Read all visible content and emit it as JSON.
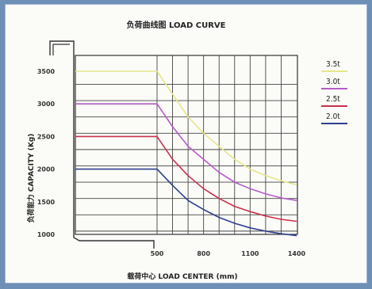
{
  "chart_data": {
    "type": "line",
    "title": "负荷曲线图 LOAD CURVE",
    "xlabel": "载荷中心 LOAD CENTER (mm)",
    "ylabel": "负荷能力 CAPACITY (Kg)",
    "x_ticks": [
      "500",
      "800",
      "1100",
      "1400"
    ],
    "y_ticks": [
      "1000",
      "1500",
      "2000",
      "2500",
      "3000",
      "3500"
    ],
    "xlim": [
      500,
      1400
    ],
    "ylim": [
      1000,
      3500
    ],
    "grid": true,
    "legend_position": "right",
    "series": [
      {
        "name": "3.5t",
        "color": "#e6e68a",
        "x": [
          300,
          500,
          600,
          700,
          800,
          900,
          1000,
          1100,
          1200,
          1300,
          1400
        ],
        "y": [
          3500,
          3500,
          3150,
          2800,
          2550,
          2350,
          2150,
          2000,
          1900,
          1820,
          1760
        ]
      },
      {
        "name": "3.0t",
        "color": "#b55cc6",
        "x": [
          300,
          500,
          600,
          700,
          800,
          900,
          1000,
          1100,
          1200,
          1300,
          1400
        ],
        "y": [
          3000,
          3000,
          2650,
          2350,
          2150,
          1950,
          1800,
          1700,
          1620,
          1560,
          1520
        ]
      },
      {
        "name": "2.5t",
        "color": "#c8324a",
        "x": [
          300,
          500,
          600,
          700,
          800,
          900,
          1000,
          1100,
          1200,
          1300,
          1400
        ],
        "y": [
          2500,
          2500,
          2150,
          1900,
          1700,
          1550,
          1430,
          1350,
          1280,
          1230,
          1200
        ]
      },
      {
        "name": "2.0t",
        "color": "#2e3f8f",
        "x": [
          300,
          500,
          600,
          700,
          800,
          900,
          1000,
          1100,
          1200,
          1300,
          1400
        ],
        "y": [
          2000,
          2000,
          1750,
          1520,
          1380,
          1260,
          1170,
          1100,
          1050,
          1010,
          980
        ]
      }
    ]
  }
}
